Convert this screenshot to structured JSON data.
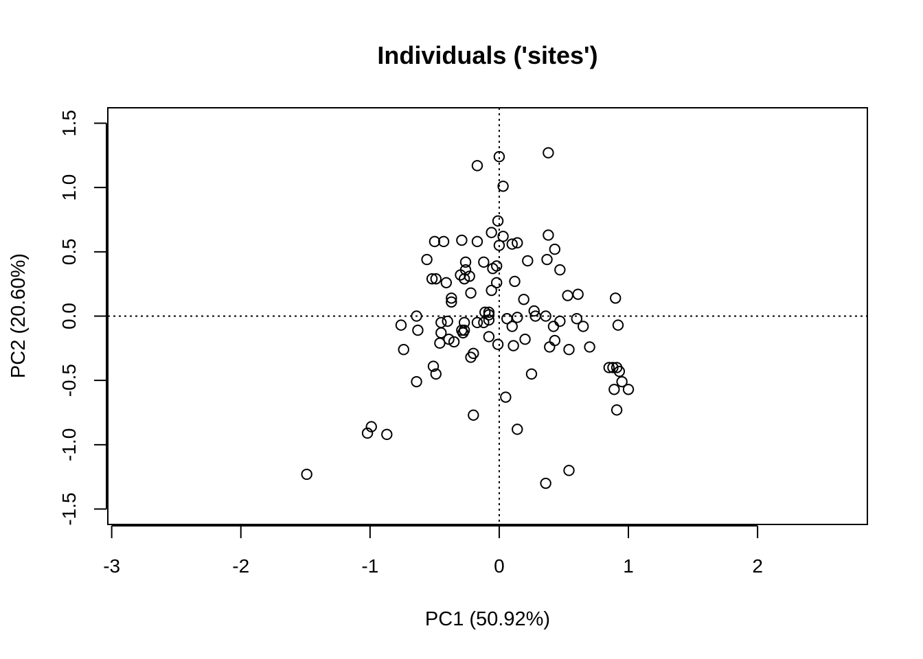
{
  "chart_data": {
    "type": "scatter",
    "title": "Individuals ('sites')",
    "xlabel": "PC1 (50.92%)",
    "ylabel": "PC2 (20.60%)",
    "xlim": [
      -3.03,
      2.85
    ],
    "ylim": [
      -1.62,
      1.62
    ],
    "x_ticks": [
      -3,
      -2,
      -1,
      0,
      1,
      2
    ],
    "x_tick_labels": [
      "-3",
      "-2",
      "-1",
      "0",
      "1",
      "2"
    ],
    "y_ticks": [
      -1.5,
      -1.0,
      -0.5,
      0.0,
      0.5,
      1.0,
      1.5
    ],
    "y_tick_labels": [
      "-1.5",
      "-1.0",
      "-0.5",
      "0.0",
      "0.5",
      "1.0",
      "1.5"
    ],
    "reference_lines": {
      "x": 0,
      "y": 0,
      "style": "dotted"
    },
    "grid": false,
    "marker": "open-circle",
    "colors": {
      "points": "#000000",
      "axes": "#000000",
      "background": "#ffffff"
    },
    "points": [
      {
        "x": 0.0,
        "y": 1.24
      },
      {
        "x": 0.38,
        "y": 1.27
      },
      {
        "x": -0.17,
        "y": 1.17
      },
      {
        "x": 0.03,
        "y": 1.01
      },
      {
        "x": -0.01,
        "y": 0.74
      },
      {
        "x": -0.06,
        "y": 0.65
      },
      {
        "x": 0.03,
        "y": 0.62
      },
      {
        "x": 0.38,
        "y": 0.63
      },
      {
        "x": -0.29,
        "y": 0.59
      },
      {
        "x": -0.5,
        "y": 0.58
      },
      {
        "x": -0.43,
        "y": 0.58
      },
      {
        "x": -0.17,
        "y": 0.58
      },
      {
        "x": 0.1,
        "y": 0.56
      },
      {
        "x": 0.14,
        "y": 0.57
      },
      {
        "x": 0.0,
        "y": 0.55
      },
      {
        "x": 0.43,
        "y": 0.52
      },
      {
        "x": -0.56,
        "y": 0.44
      },
      {
        "x": -0.26,
        "y": 0.42
      },
      {
        "x": -0.12,
        "y": 0.42
      },
      {
        "x": 0.22,
        "y": 0.43
      },
      {
        "x": 0.37,
        "y": 0.44
      },
      {
        "x": -0.02,
        "y": 0.39
      },
      {
        "x": -0.05,
        "y": 0.37
      },
      {
        "x": -0.26,
        "y": 0.36
      },
      {
        "x": 0.47,
        "y": 0.36
      },
      {
        "x": -0.3,
        "y": 0.32
      },
      {
        "x": -0.23,
        "y": 0.31
      },
      {
        "x": -0.52,
        "y": 0.29
      },
      {
        "x": -0.49,
        "y": 0.29
      },
      {
        "x": -0.27,
        "y": 0.29
      },
      {
        "x": -0.41,
        "y": 0.26
      },
      {
        "x": -0.02,
        "y": 0.26
      },
      {
        "x": 0.12,
        "y": 0.27
      },
      {
        "x": -0.06,
        "y": 0.2
      },
      {
        "x": -0.22,
        "y": 0.18
      },
      {
        "x": 0.53,
        "y": 0.16
      },
      {
        "x": 0.61,
        "y": 0.17
      },
      {
        "x": 0.9,
        "y": 0.14
      },
      {
        "x": -0.37,
        "y": 0.14
      },
      {
        "x": -0.37,
        "y": 0.11
      },
      {
        "x": 0.19,
        "y": 0.13
      },
      {
        "x": 0.27,
        "y": 0.04
      },
      {
        "x": -0.11,
        "y": 0.03
      },
      {
        "x": -0.08,
        "y": 0.03
      },
      {
        "x": -0.64,
        "y": 0.0
      },
      {
        "x": 0.28,
        "y": 0.0
      },
      {
        "x": 0.36,
        "y": 0.0
      },
      {
        "x": -0.08,
        "y": 0.01
      },
      {
        "x": 0.14,
        "y": -0.01
      },
      {
        "x": 0.06,
        "y": -0.02
      },
      {
        "x": 0.6,
        "y": -0.02
      },
      {
        "x": -0.08,
        "y": -0.03
      },
      {
        "x": -0.4,
        "y": -0.04
      },
      {
        "x": -0.45,
        "y": -0.05
      },
      {
        "x": -0.17,
        "y": -0.05
      },
      {
        "x": -0.12,
        "y": -0.05
      },
      {
        "x": -0.27,
        "y": -0.05
      },
      {
        "x": 0.47,
        "y": -0.04
      },
      {
        "x": -0.76,
        "y": -0.07
      },
      {
        "x": 0.92,
        "y": -0.07
      },
      {
        "x": 0.42,
        "y": -0.08
      },
      {
        "x": 0.1,
        "y": -0.08
      },
      {
        "x": 0.65,
        "y": -0.08
      },
      {
        "x": -0.63,
        "y": -0.11
      },
      {
        "x": -0.29,
        "y": -0.11
      },
      {
        "x": -0.27,
        "y": -0.11
      },
      {
        "x": -0.28,
        "y": -0.13
      },
      {
        "x": -0.45,
        "y": -0.13
      },
      {
        "x": -0.08,
        "y": -0.16
      },
      {
        "x": -0.39,
        "y": -0.18
      },
      {
        "x": 0.2,
        "y": -0.18
      },
      {
        "x": 0.43,
        "y": -0.19
      },
      {
        "x": -0.35,
        "y": -0.2
      },
      {
        "x": -0.46,
        "y": -0.21
      },
      {
        "x": -0.01,
        "y": -0.22
      },
      {
        "x": 0.11,
        "y": -0.23
      },
      {
        "x": 0.39,
        "y": -0.24
      },
      {
        "x": 0.7,
        "y": -0.24
      },
      {
        "x": -0.74,
        "y": -0.26
      },
      {
        "x": 0.54,
        "y": -0.26
      },
      {
        "x": -0.2,
        "y": -0.29
      },
      {
        "x": -0.22,
        "y": -0.32
      },
      {
        "x": -0.51,
        "y": -0.39
      },
      {
        "x": 0.85,
        "y": -0.4
      },
      {
        "x": 0.88,
        "y": -0.4
      },
      {
        "x": 0.91,
        "y": -0.4
      },
      {
        "x": 0.93,
        "y": -0.43
      },
      {
        "x": -0.49,
        "y": -0.45
      },
      {
        "x": 0.25,
        "y": -0.45
      },
      {
        "x": 0.95,
        "y": -0.51
      },
      {
        "x": -0.64,
        "y": -0.51
      },
      {
        "x": 0.89,
        "y": -0.57
      },
      {
        "x": 1.0,
        "y": -0.57
      },
      {
        "x": 0.05,
        "y": -0.63
      },
      {
        "x": 0.91,
        "y": -0.73
      },
      {
        "x": -0.2,
        "y": -0.77
      },
      {
        "x": 0.14,
        "y": -0.88
      },
      {
        "x": -0.99,
        "y": -0.86
      },
      {
        "x": -1.02,
        "y": -0.91
      },
      {
        "x": -0.87,
        "y": -0.92
      },
      {
        "x": -1.49,
        "y": -1.23
      },
      {
        "x": 0.54,
        "y": -1.2
      },
      {
        "x": 0.36,
        "y": -1.3
      }
    ]
  }
}
